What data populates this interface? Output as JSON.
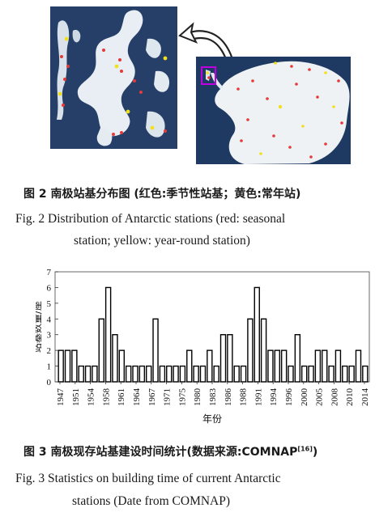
{
  "figure2": {
    "caption_cn": "图 2   南极站基分布图 (红色:季节性站基；黄色:常年站)",
    "caption_en_line1": "Fig. 2   Distribution of Antarctic stations (red: seasonal",
    "caption_en_line2": "station; yellow: year-round station)",
    "colors": {
      "seasonal": "#e23b3b",
      "year_round": "#f0e020",
      "highlight": "#c000e0"
    }
  },
  "figure3": {
    "caption_cn": "图 3   南极现存站基建设时间统计(数据来源:COMNAP",
    "caption_cn_ref": "[16]",
    "caption_cn_end": ")",
    "caption_en_line1": "Fig. 3   Statistics on building time of current Antarctic",
    "caption_en_line2": "stations (Date from COMNAP)"
  },
  "chart_data": {
    "type": "bar",
    "ylabel": "站基数量/座",
    "xlabel": "年份",
    "ylim": [
      0,
      7
    ],
    "yticks": [
      0,
      1,
      2,
      3,
      4,
      5,
      6,
      7
    ],
    "tick_years": [
      1947,
      1951,
      1954,
      1958,
      1961,
      1964,
      1967,
      1971,
      1975,
      1980,
      1983,
      1986,
      1988,
      1991,
      1994,
      1996,
      2000,
      2005,
      2008,
      2010,
      2014
    ],
    "values": [
      2,
      2,
      2,
      1,
      1,
      1,
      4,
      6,
      3,
      2,
      1,
      1,
      1,
      1,
      4,
      1,
      1,
      1,
      1,
      2,
      1,
      1,
      2,
      1,
      3,
      3,
      1,
      1,
      4,
      6,
      4,
      2,
      2,
      2,
      1,
      3,
      1,
      1,
      2,
      2,
      1,
      2,
      1,
      1,
      2,
      1
    ],
    "bar_color": "#ffffff",
    "edge_color": "#000000"
  }
}
